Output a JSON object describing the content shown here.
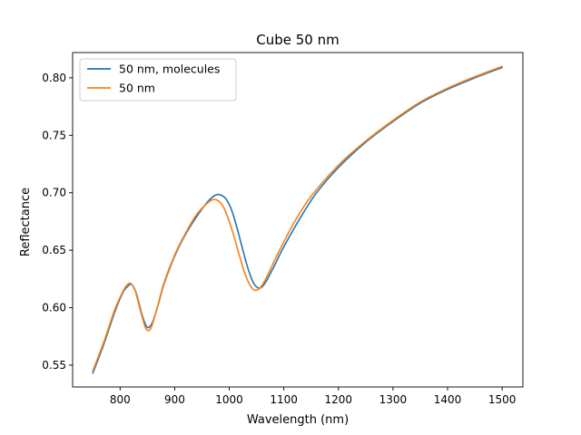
{
  "chart_data": {
    "type": "line",
    "title": "Cube 50 nm",
    "xlabel": "Wavelength (nm)",
    "ylabel": "Reflectance",
    "xlim": [
      713,
      1538
    ],
    "ylim": [
      0.531,
      0.822
    ],
    "xticks": [
      800,
      900,
      1000,
      1100,
      1200,
      1300,
      1400,
      1500
    ],
    "yticks": [
      0.55,
      0.6,
      0.65,
      0.7,
      0.75,
      0.8
    ],
    "ytick_labels": [
      "0.55",
      "0.60",
      "0.65",
      "0.70",
      "0.75",
      "0.80"
    ],
    "grid": false,
    "legend_position": "upper-left",
    "series": [
      {
        "name": "50 nm, molecules",
        "color": "#1f77b4",
        "points": [
          [
            750,
            0.543
          ],
          [
            770,
            0.568
          ],
          [
            790,
            0.596
          ],
          [
            805,
            0.613
          ],
          [
            815,
            0.619
          ],
          [
            822,
            0.62
          ],
          [
            830,
            0.612
          ],
          [
            840,
            0.594
          ],
          [
            848,
            0.584
          ],
          [
            853,
            0.583
          ],
          [
            860,
            0.588
          ],
          [
            870,
            0.603
          ],
          [
            880,
            0.62
          ],
          [
            900,
            0.645
          ],
          [
            920,
            0.664
          ],
          [
            940,
            0.679
          ],
          [
            960,
            0.692
          ],
          [
            975,
            0.698
          ],
          [
            985,
            0.698
          ],
          [
            995,
            0.694
          ],
          [
            1005,
            0.684
          ],
          [
            1015,
            0.668
          ],
          [
            1025,
            0.65
          ],
          [
            1035,
            0.633
          ],
          [
            1045,
            0.621
          ],
          [
            1055,
            0.617
          ],
          [
            1065,
            0.621
          ],
          [
            1080,
            0.634
          ],
          [
            1100,
            0.653
          ],
          [
            1130,
            0.678
          ],
          [
            1160,
            0.7
          ],
          [
            1200,
            0.722
          ],
          [
            1250,
            0.744
          ],
          [
            1300,
            0.762
          ],
          [
            1350,
            0.778
          ],
          [
            1400,
            0.79
          ],
          [
            1450,
            0.8
          ],
          [
            1500,
            0.809
          ]
        ]
      },
      {
        "name": "50 nm",
        "color": "#ff7f0e",
        "points": [
          [
            750,
            0.545
          ],
          [
            770,
            0.57
          ],
          [
            790,
            0.598
          ],
          [
            805,
            0.614
          ],
          [
            813,
            0.62
          ],
          [
            820,
            0.621
          ],
          [
            828,
            0.614
          ],
          [
            838,
            0.596
          ],
          [
            846,
            0.583
          ],
          [
            852,
            0.58
          ],
          [
            858,
            0.584
          ],
          [
            868,
            0.6
          ],
          [
            880,
            0.621
          ],
          [
            900,
            0.646
          ],
          [
            920,
            0.665
          ],
          [
            940,
            0.681
          ],
          [
            960,
            0.691
          ],
          [
            970,
            0.694
          ],
          [
            980,
            0.693
          ],
          [
            990,
            0.687
          ],
          [
            1000,
            0.675
          ],
          [
            1010,
            0.66
          ],
          [
            1020,
            0.643
          ],
          [
            1030,
            0.628
          ],
          [
            1040,
            0.618
          ],
          [
            1048,
            0.615
          ],
          [
            1058,
            0.618
          ],
          [
            1070,
            0.628
          ],
          [
            1090,
            0.648
          ],
          [
            1120,
            0.675
          ],
          [
            1150,
            0.697
          ],
          [
            1200,
            0.724
          ],
          [
            1250,
            0.745
          ],
          [
            1300,
            0.763
          ],
          [
            1350,
            0.779
          ],
          [
            1400,
            0.791
          ],
          [
            1450,
            0.801
          ],
          [
            1500,
            0.81
          ]
        ]
      }
    ]
  }
}
